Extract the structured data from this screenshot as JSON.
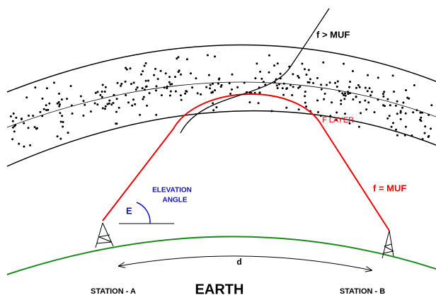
{
  "labels": {
    "above_muf": "f > MUF",
    "layer": "F LAYER",
    "at_muf": "f = MUF",
    "elevation": [
      "ELEVATION",
      "ANGLE"
    ],
    "angle_symbol": "E",
    "distance": "d",
    "station_a": "STATION - A",
    "earth": "EARTH",
    "station_b": "STATION - B"
  }
}
